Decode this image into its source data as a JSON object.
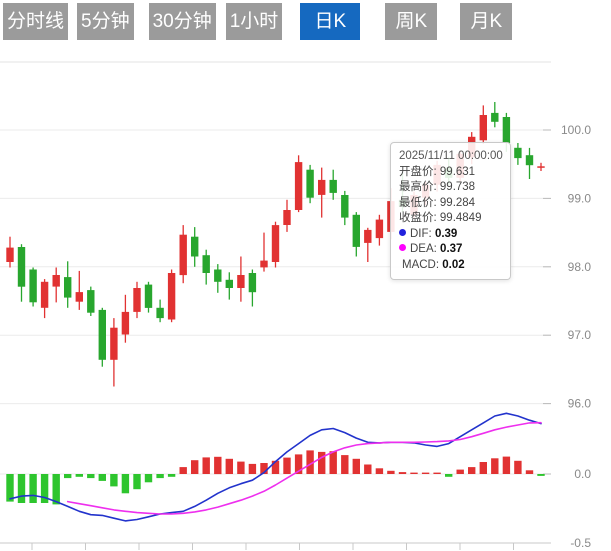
{
  "toolbar": {
    "items": [
      {
        "label": "分时线",
        "active": false
      },
      {
        "label": "5分钟",
        "active": false
      },
      {
        "label": "30分钟",
        "active": false
      },
      {
        "label": "1小时",
        "active": false
      },
      {
        "label": "日K",
        "active": true
      },
      {
        "label": "周K",
        "active": false
      },
      {
        "label": "月K",
        "active": false
      }
    ]
  },
  "tooltip": {
    "datetime": "2025/11/11 00:00:00",
    "rows": [
      {
        "label": "开盘价:",
        "value": "99.631"
      },
      {
        "label": "最高价:",
        "value": "99.738"
      },
      {
        "label": "最低价:",
        "value": "99.284"
      },
      {
        "label": "收盘价:",
        "value": "99.4849"
      }
    ],
    "indicators": [
      {
        "dot": "#2222dd",
        "label": "DIF:",
        "value": "0.39"
      },
      {
        "dot": "#ff00ff",
        "label": "DEA:",
        "value": "0.37"
      },
      {
        "dot": null,
        "label": "MACD:",
        "value": "0.02"
      }
    ]
  },
  "chart_data": {
    "type": "candlestick",
    "title": "",
    "hovered_datetime": "2025/11/11 00:00:00",
    "hovered_point": {
      "open": 99.631,
      "high": 99.738,
      "low": 99.284,
      "close": 99.4849,
      "dif": 0.39,
      "dea": 0.37,
      "macd": 0.02
    },
    "price_axis": {
      "labels": [
        "100.0",
        "99.0",
        "98.0",
        "97.0",
        "96.0"
      ],
      "values": [
        100.0,
        99.0,
        98.0,
        97.0,
        96.0
      ]
    },
    "macd_axis": {
      "labels": [
        "0.0",
        "-0.5"
      ],
      "values": [
        0.0,
        -0.5
      ]
    },
    "legend_position": "none",
    "grid": true,
    "candles_ohlc": [
      [
        98.07,
        98.44,
        97.99,
        98.28
      ],
      [
        98.29,
        98.33,
        97.49,
        97.71
      ],
      [
        97.96,
        97.99,
        97.42,
        97.48
      ],
      [
        97.4,
        97.82,
        97.25,
        97.78
      ],
      [
        97.71,
        97.99,
        97.48,
        97.88
      ],
      [
        97.85,
        98.08,
        97.4,
        97.55
      ],
      [
        97.49,
        97.94,
        97.37,
        97.63
      ],
      [
        97.66,
        97.71,
        97.28,
        97.33
      ],
      [
        97.37,
        97.4,
        96.54,
        96.64
      ],
      [
        96.64,
        97.25,
        96.25,
        97.11
      ],
      [
        97.01,
        97.59,
        96.89,
        97.34
      ],
      [
        97.34,
        97.78,
        97.25,
        97.69
      ],
      [
        97.74,
        97.78,
        97.33,
        97.4
      ],
      [
        97.4,
        97.52,
        97.19,
        97.25
      ],
      [
        97.23,
        97.96,
        97.19,
        97.91
      ],
      [
        97.88,
        98.61,
        97.76,
        98.47
      ],
      [
        98.44,
        98.58,
        98.0,
        98.15
      ],
      [
        98.17,
        98.25,
        97.74,
        97.91
      ],
      [
        97.96,
        98.04,
        97.62,
        97.78
      ],
      [
        97.81,
        97.92,
        97.52,
        97.69
      ],
      [
        97.69,
        98.15,
        97.49,
        97.88
      ],
      [
        97.91,
        97.96,
        97.42,
        97.63
      ],
      [
        97.99,
        98.5,
        97.93,
        98.09
      ],
      [
        98.07,
        98.66,
        97.99,
        98.61
      ],
      [
        98.61,
        98.98,
        98.51,
        98.83
      ],
      [
        98.83,
        99.63,
        98.8,
        99.53
      ],
      [
        99.42,
        99.49,
        98.93,
        99.01
      ],
      [
        99.05,
        99.45,
        98.72,
        99.27
      ],
      [
        99.27,
        99.42,
        98.98,
        99.08
      ],
      [
        99.05,
        99.11,
        98.61,
        98.72
      ],
      [
        98.76,
        98.8,
        98.15,
        98.29
      ],
      [
        98.35,
        98.57,
        98.07,
        98.54
      ],
      [
        98.42,
        98.76,
        98.31,
        98.69
      ],
      [
        98.51,
        99.15,
        98.4,
        98.96
      ],
      [
        98.98,
        99.39,
        98.8,
        98.88
      ],
      [
        98.76,
        99.1,
        98.7,
        99.05
      ],
      [
        99.01,
        99.25,
        98.9,
        99.2
      ],
      [
        99.2,
        99.55,
        99.1,
        99.49
      ],
      [
        99.45,
        99.6,
        99.2,
        99.3
      ],
      [
        99.3,
        99.7,
        99.25,
        99.65
      ],
      [
        99.6,
        99.97,
        99.5,
        99.9
      ],
      [
        99.85,
        100.36,
        99.8,
        100.22
      ],
      [
        100.25,
        100.41,
        100.04,
        100.12
      ],
      [
        100.19,
        100.25,
        99.68,
        99.81
      ],
      [
        99.74,
        99.81,
        99.49,
        99.59
      ],
      [
        99.631,
        99.738,
        99.284,
        99.4849
      ],
      [
        99.46,
        99.52,
        99.4,
        99.47
      ]
    ],
    "macd": {
      "histogram": [
        -0.2,
        -0.21,
        -0.21,
        -0.21,
        -0.22,
        -0.03,
        -0.02,
        -0.03,
        -0.05,
        -0.09,
        -0.14,
        -0.11,
        -0.06,
        -0.03,
        -0.02,
        0.05,
        0.1,
        0.12,
        0.125,
        0.11,
        0.09,
        0.073,
        0.08,
        0.096,
        0.119,
        0.142,
        0.171,
        0.16,
        0.165,
        0.137,
        0.11,
        0.069,
        0.041,
        0.023,
        0.014,
        0.009,
        0.007,
        0.005,
        -0.02,
        0.032,
        0.05,
        0.087,
        0.114,
        0.126,
        0.096,
        0.027,
        -0.014
      ],
      "dif": [
        -0.18,
        -0.16,
        -0.155,
        -0.17,
        -0.2,
        -0.235,
        -0.27,
        -0.295,
        -0.3,
        -0.32,
        -0.34,
        -0.33,
        -0.31,
        -0.29,
        -0.28,
        -0.27,
        -0.235,
        -0.19,
        -0.14,
        -0.1,
        -0.07,
        -0.045,
        0.01,
        0.09,
        0.16,
        0.22,
        0.28,
        0.32,
        0.33,
        0.3,
        0.26,
        0.23,
        0.225,
        0.23,
        0.23,
        0.225,
        0.21,
        0.2,
        0.22,
        0.27,
        0.32,
        0.37,
        0.42,
        0.44,
        0.42,
        0.39,
        0.365
      ],
      "dea": [
        null,
        null,
        null,
        null,
        null,
        -0.2,
        -0.215,
        -0.23,
        -0.245,
        -0.26,
        -0.27,
        -0.28,
        -0.285,
        -0.29,
        -0.29,
        -0.285,
        -0.275,
        -0.26,
        -0.24,
        -0.215,
        -0.19,
        -0.16,
        -0.125,
        -0.08,
        -0.03,
        0.02,
        0.07,
        0.12,
        0.16,
        0.19,
        0.21,
        0.22,
        0.225,
        0.23,
        0.23,
        0.23,
        0.232,
        0.235,
        0.24,
        0.25,
        0.27,
        0.295,
        0.32,
        0.34,
        0.355,
        0.37,
        0.372
      ]
    }
  },
  "colors": {
    "up": "#e13232",
    "down": "#28a62e",
    "hist_up": "#e13232",
    "hist_down": "#2ec52e",
    "dif_line": "#2233cc",
    "dea_line": "#ee2fee",
    "tab_active": "#1569c0",
    "tab_bg": "#9b9b9b",
    "grid": "#ebebeb",
    "axis_text": "#8a8a8a"
  }
}
